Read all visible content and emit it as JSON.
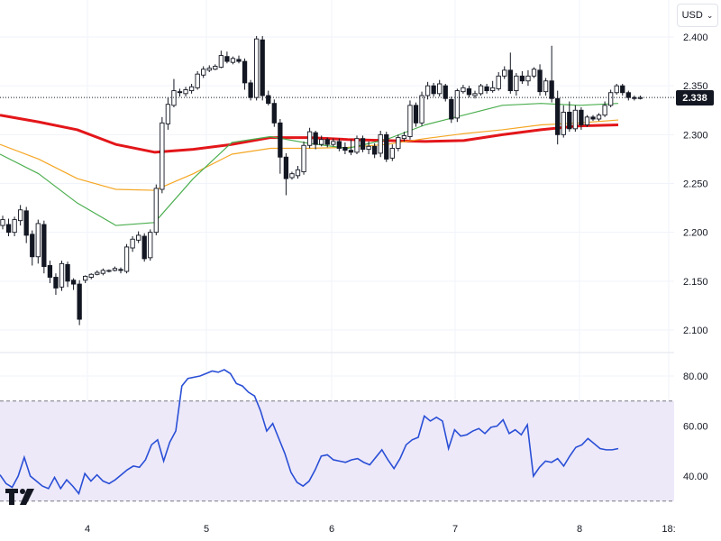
{
  "toolbar": {
    "currency": "USD",
    "chevron_icon": "chevron-down-icon"
  },
  "current_price": "2.338",
  "colors": {
    "rsi_line": "#2a4fd6",
    "rsi_band_fill": "#ede9f9",
    "ma_red": "#e3161a",
    "ma_orange": "#f5a623",
    "ma_green": "#4caf50",
    "candle_outline": "#131722"
  },
  "chart_data": [
    {
      "type": "candlestick",
      "title": "",
      "y_axis": {
        "ticks": [
          "2.100",
          "2.150",
          "2.200",
          "2.250",
          "2.300",
          "2.350",
          "2.400"
        ],
        "range": [
          2.085,
          2.415
        ]
      },
      "x_axis": {
        "ticks": [
          "4",
          "5",
          "6",
          "7",
          "8",
          "18:"
        ]
      },
      "last_price_line": 2.338,
      "moving_averages": [
        {
          "color": "red",
          "y": [
            2.32,
            2.313,
            2.305,
            2.29,
            2.282,
            2.285,
            2.29,
            2.297,
            2.297,
            2.295,
            2.294,
            2.293,
            2.294,
            2.3,
            2.305,
            2.309,
            2.31
          ]
        },
        {
          "color": "orange",
          "y": [
            2.29,
            2.275,
            2.255,
            2.244,
            2.243,
            2.26,
            2.28,
            2.286,
            2.286,
            2.287,
            2.29,
            2.296,
            2.301,
            2.305,
            2.31,
            2.312,
            2.315
          ]
        },
        {
          "color": "green",
          "y": [
            2.28,
            2.26,
            2.23,
            2.207,
            2.21,
            2.255,
            2.292,
            2.298,
            2.291,
            2.286,
            2.295,
            2.31,
            2.32,
            2.33,
            2.332,
            2.33,
            2.332
          ]
        }
      ],
      "candles": [
        [
          2.207,
          2.213,
          2.203,
          2.217
        ],
        [
          2.208,
          2.2,
          2.196,
          2.214
        ],
        [
          2.2,
          2.213,
          2.196,
          2.216
        ],
        [
          2.212,
          2.223,
          2.207,
          2.228
        ],
        [
          2.222,
          2.197,
          2.189,
          2.226
        ],
        [
          2.198,
          2.175,
          2.166,
          2.202
        ],
        [
          2.175,
          2.209,
          2.168,
          2.213
        ],
        [
          2.208,
          2.165,
          2.158,
          2.212
        ],
        [
          2.166,
          2.154,
          2.148,
          2.171
        ],
        [
          2.154,
          2.143,
          2.136,
          2.158
        ],
        [
          2.144,
          2.168,
          2.14,
          2.171
        ],
        [
          2.167,
          2.15,
          2.144,
          2.17
        ],
        [
          2.151,
          2.147,
          2.141,
          2.153
        ],
        [
          2.147,
          2.111,
          2.105,
          2.151
        ],
        [
          2.151,
          2.155,
          2.148,
          2.156
        ],
        [
          2.154,
          2.157,
          2.152,
          2.158
        ],
        [
          2.157,
          2.159,
          2.156,
          2.161
        ],
        [
          2.158,
          2.161,
          2.156,
          2.163
        ],
        [
          2.16,
          2.161,
          2.159,
          2.162
        ],
        [
          2.161,
          2.163,
          2.16,
          2.165
        ],
        [
          2.162,
          2.161,
          2.158,
          2.164
        ],
        [
          2.16,
          2.185,
          2.158,
          2.188
        ],
        [
          2.184,
          2.193,
          2.18,
          2.196
        ],
        [
          2.192,
          2.197,
          2.189,
          2.201
        ],
        [
          2.196,
          2.173,
          2.17,
          2.199
        ],
        [
          2.174,
          2.2,
          2.171,
          2.203
        ],
        [
          2.2,
          2.245,
          2.197,
          2.249
        ],
        [
          2.244,
          2.312,
          2.24,
          2.318
        ],
        [
          2.311,
          2.331,
          2.305,
          2.338
        ],
        [
          2.33,
          2.345,
          2.328,
          2.357
        ],
        [
          2.344,
          2.343,
          2.339,
          2.347
        ],
        [
          2.342,
          2.346,
          2.339,
          2.349
        ],
        [
          2.345,
          2.349,
          2.342,
          2.352
        ],
        [
          2.348,
          2.362,
          2.346,
          2.365
        ],
        [
          2.361,
          2.367,
          2.358,
          2.37
        ],
        [
          2.366,
          2.368,
          2.364,
          2.371
        ],
        [
          2.367,
          2.37,
          2.366,
          2.372
        ],
        [
          2.369,
          2.381,
          2.368,
          2.386
        ],
        [
          2.38,
          2.375,
          2.373,
          2.385
        ],
        [
          2.374,
          2.378,
          2.372,
          2.38
        ],
        [
          2.377,
          2.375,
          2.373,
          2.381
        ],
        [
          2.375,
          2.353,
          2.346,
          2.378
        ],
        [
          2.353,
          2.338,
          2.335,
          2.356
        ],
        [
          2.338,
          2.398,
          2.335,
          2.401
        ],
        [
          2.397,
          2.34,
          2.335,
          2.401
        ],
        [
          2.34,
          2.332,
          2.33,
          2.345
        ],
        [
          2.332,
          2.312,
          2.308,
          2.336
        ],
        [
          2.312,
          2.277,
          2.26,
          2.316
        ],
        [
          2.277,
          2.255,
          2.238,
          2.281
        ],
        [
          2.256,
          2.26,
          2.254,
          2.262
        ],
        [
          2.258,
          2.264,
          2.255,
          2.268
        ],
        [
          2.262,
          2.289,
          2.259,
          2.293
        ],
        [
          2.289,
          2.303,
          2.286,
          2.307
        ],
        [
          2.302,
          2.29,
          2.285,
          2.304
        ],
        [
          2.29,
          2.295,
          2.288,
          2.299
        ],
        [
          2.295,
          2.29,
          2.287,
          2.297
        ],
        [
          2.29,
          2.293,
          2.288,
          2.296
        ],
        [
          2.293,
          2.286,
          2.283,
          2.296
        ],
        [
          2.287,
          2.284,
          2.28,
          2.292
        ],
        [
          2.284,
          2.282,
          2.279,
          2.295
        ],
        [
          2.282,
          2.296,
          2.28,
          2.299
        ],
        [
          2.296,
          2.285,
          2.282,
          2.299
        ],
        [
          2.285,
          2.288,
          2.28,
          2.293
        ],
        [
          2.288,
          2.28,
          2.276,
          2.291
        ],
        [
          2.281,
          2.3,
          2.277,
          2.304
        ],
        [
          2.3,
          2.275,
          2.272,
          2.303
        ],
        [
          2.276,
          2.286,
          2.273,
          2.29
        ],
        [
          2.286,
          2.297,
          2.283,
          2.3
        ],
        [
          2.296,
          2.299,
          2.293,
          2.303
        ],
        [
          2.298,
          2.33,
          2.295,
          2.335
        ],
        [
          2.33,
          2.312,
          2.308,
          2.333
        ],
        [
          2.312,
          2.34,
          2.309,
          2.344
        ],
        [
          2.34,
          2.35,
          2.336,
          2.354
        ],
        [
          2.35,
          2.342,
          2.339,
          2.353
        ],
        [
          2.342,
          2.352,
          2.339,
          2.356
        ],
        [
          2.35,
          2.337,
          2.334,
          2.352
        ],
        [
          2.336,
          2.316,
          2.312,
          2.339
        ],
        [
          2.317,
          2.345,
          2.313,
          2.347
        ],
        [
          2.344,
          2.348,
          2.342,
          2.351
        ],
        [
          2.347,
          2.341,
          2.338,
          2.35
        ],
        [
          2.34,
          2.342,
          2.337,
          2.345
        ],
        [
          2.342,
          2.35,
          2.34,
          2.352
        ],
        [
          2.349,
          2.345,
          2.342,
          2.352
        ],
        [
          2.345,
          2.348,
          2.343,
          2.355
        ],
        [
          2.347,
          2.36,
          2.345,
          2.364
        ],
        [
          2.36,
          2.366,
          2.357,
          2.37
        ],
        [
          2.366,
          2.345,
          2.342,
          2.384
        ],
        [
          2.345,
          2.36,
          2.34,
          2.363
        ],
        [
          2.36,
          2.355,
          2.352,
          2.365
        ],
        [
          2.355,
          2.36,
          2.35,
          2.366
        ],
        [
          2.36,
          2.367,
          2.358,
          2.369
        ],
        [
          2.366,
          2.344,
          2.34,
          2.372
        ],
        [
          2.344,
          2.355,
          2.34,
          2.358
        ],
        [
          2.355,
          2.337,
          2.333,
          2.391
        ],
        [
          2.337,
          2.3,
          2.29,
          2.345
        ],
        [
          2.3,
          2.323,
          2.297,
          2.33
        ],
        [
          2.323,
          2.306,
          2.303,
          2.334
        ],
        [
          2.306,
          2.325,
          2.303,
          2.33
        ],
        [
          2.325,
          2.31,
          2.305,
          2.328
        ],
        [
          2.31,
          2.318,
          2.308,
          2.32
        ],
        [
          2.318,
          2.316,
          2.314,
          2.32
        ],
        [
          2.316,
          2.32,
          2.314,
          2.322
        ],
        [
          2.32,
          2.33,
          2.318,
          2.334
        ],
        [
          2.33,
          2.343,
          2.328,
          2.346
        ],
        [
          2.343,
          2.35,
          2.341,
          2.352
        ],
        [
          2.35,
          2.343,
          2.34,
          2.352
        ],
        [
          2.343,
          2.338,
          2.335,
          2.345
        ],
        [
          2.338,
          2.337,
          2.335,
          2.34
        ],
        [
          2.337,
          2.338,
          2.336,
          2.34
        ]
      ]
    },
    {
      "type": "line",
      "title": "",
      "y_axis": {
        "ticks": [
          "40.00",
          "60.00",
          "80.00"
        ],
        "range": [
          30,
          87
        ]
      },
      "band": [
        30,
        70
      ],
      "series": [
        {
          "values": [
            40.5,
            37.0,
            35.5,
            40.0,
            47.5,
            40.0,
            38.0,
            36.0,
            35.0,
            39.5,
            35.0,
            38.5,
            36.0,
            33.0,
            41.0,
            38.0,
            40.5,
            38.0,
            37.0,
            38.5,
            40.5,
            42.5,
            44.0,
            43.5,
            46.5,
            52.5,
            54.5,
            46.0,
            53.5,
            58.0,
            76.0,
            79.0,
            79.5,
            80.0,
            81.0,
            82.0,
            81.5,
            82.5,
            81.0,
            77.0,
            76.0,
            73.5,
            72.0,
            66.0,
            58.0,
            61.0,
            55.0,
            49.0,
            41.5,
            37.5,
            36.0,
            38.0,
            42.5,
            48.0,
            48.5,
            46.5,
            46.0,
            45.5,
            46.5,
            47.0,
            45.5,
            44.5,
            47.5,
            50.5,
            46.5,
            43.0,
            47.0,
            52.5,
            54.5,
            55.5,
            64.0,
            62.0,
            63.5,
            62.0,
            51.0,
            58.5,
            56.0,
            56.5,
            58.0,
            59.0,
            57.0,
            59.5,
            60.0,
            62.5,
            57.0,
            58.5,
            56.5,
            60.5,
            40.0,
            43.5,
            46.0,
            45.5,
            47.0,
            44.0,
            48.0,
            51.5,
            52.5,
            55.0,
            53.0,
            51.0,
            50.5,
            50.5,
            51.0
          ]
        }
      ]
    }
  ]
}
